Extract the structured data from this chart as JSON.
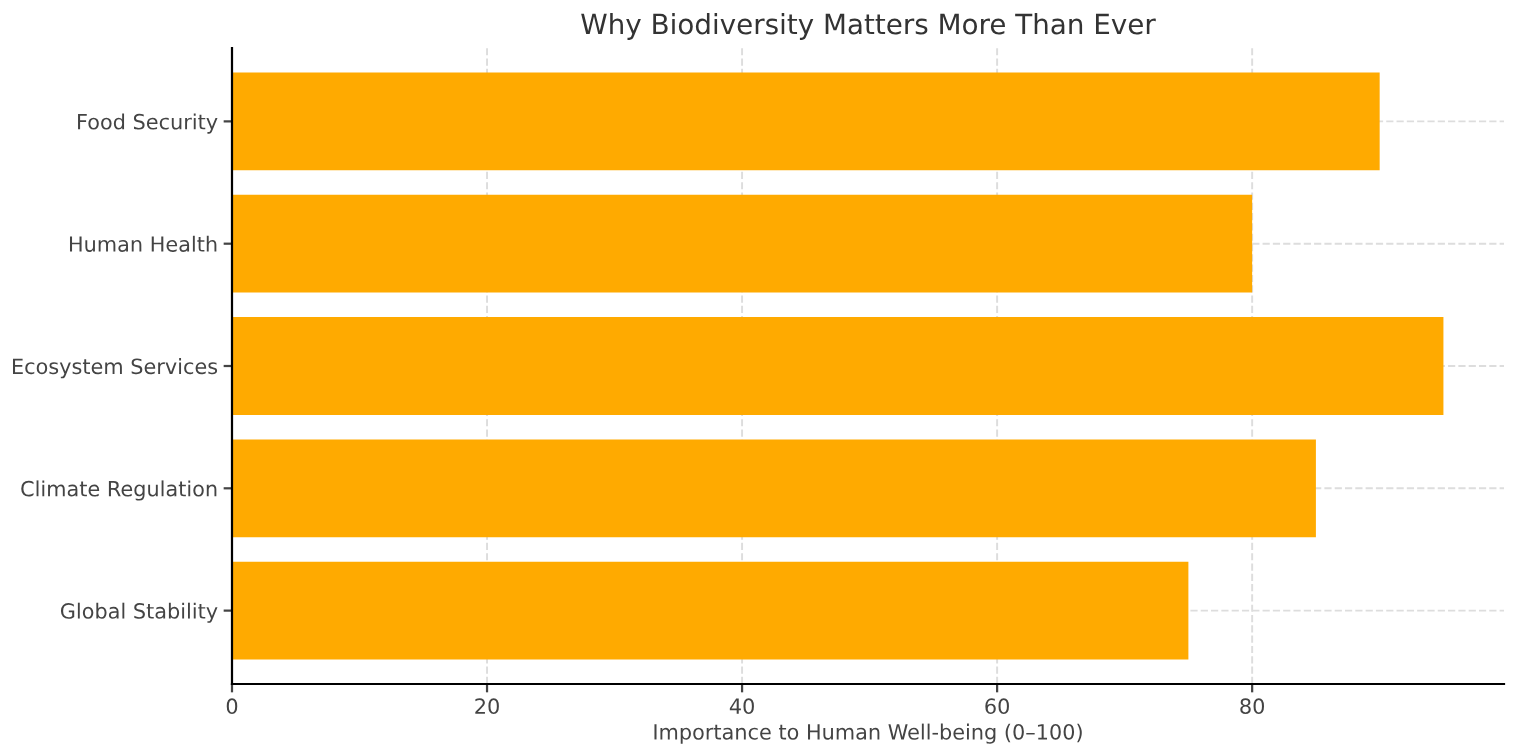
{
  "chart_data": {
    "type": "bar",
    "orientation": "horizontal",
    "title": "Why Biodiversity Matters More Than Ever",
    "xlabel": "Importance to Human Well-being (0–100)",
    "categories": [
      "Food Security",
      "Human Health",
      "Ecosystem Services",
      "Climate Regulation",
      "Global Stability"
    ],
    "values": [
      90,
      80,
      95,
      85,
      75
    ],
    "color": "#ffaa00",
    "xlim": [
      0,
      99.75
    ],
    "xticks": [
      0,
      20,
      40,
      60,
      80
    ],
    "grid": true,
    "line_style": "dashed"
  }
}
